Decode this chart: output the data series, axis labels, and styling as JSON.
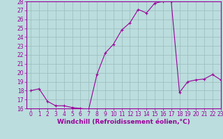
{
  "x": [
    0,
    1,
    2,
    3,
    4,
    5,
    6,
    7,
    8,
    9,
    10,
    11,
    12,
    13,
    14,
    15,
    16,
    17,
    18,
    19,
    20,
    21,
    22,
    23
  ],
  "y": [
    18,
    18.2,
    16.8,
    16.3,
    16.3,
    16.1,
    16.0,
    15.9,
    19.8,
    22.2,
    23.2,
    24.8,
    25.6,
    27.1,
    26.7,
    27.8,
    28.0,
    28.0,
    17.8,
    19.0,
    19.2,
    19.3,
    19.8,
    19.2
  ],
  "line_color": "#990099",
  "marker": "+",
  "bg_color": "#bbdddd",
  "grid_color": "#99bbbb",
  "xlabel": "Windchill (Refroidissement éolien,°C)",
  "ylim": [
    16,
    28
  ],
  "xlim": [
    -0.5,
    23
  ],
  "yticks": [
    16,
    17,
    18,
    19,
    20,
    21,
    22,
    23,
    24,
    25,
    26,
    27,
    28
  ],
  "xticks": [
    0,
    1,
    2,
    3,
    4,
    5,
    6,
    7,
    8,
    9,
    10,
    11,
    12,
    13,
    14,
    15,
    16,
    17,
    18,
    19,
    20,
    21,
    22,
    23
  ],
  "xlabel_color": "#990099",
  "axis_color": "#990099",
  "tick_label_color": "#990099",
  "tick_fontsize": 5.5,
  "xlabel_fontsize": 6.5
}
